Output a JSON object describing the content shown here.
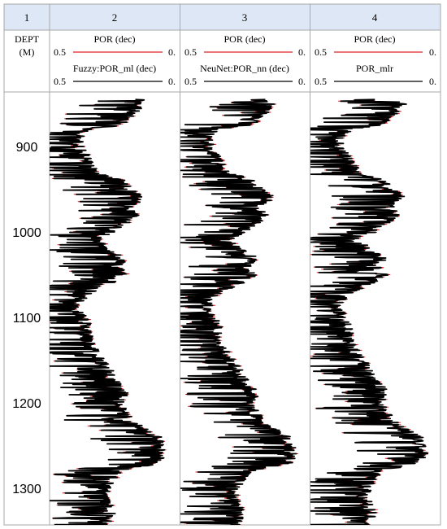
{
  "chart_data": {
    "type": "line",
    "track_numbers": [
      "1",
      "2",
      "3",
      "4"
    ],
    "depth_track": {
      "label": "DEPT",
      "unit": "(M)"
    },
    "depth_axis": {
      "range": [
        845,
        1345
      ],
      "ticks": [
        "900",
        "1000",
        "1100",
        "1200",
        "1300"
      ]
    },
    "tracks": [
      {
        "curves": [
          {
            "name": "POR (dec)",
            "left": "0.5",
            "right": "0.",
            "color": "#e02020"
          },
          {
            "name": "Fuzzy:POR_ml (dec)",
            "left": "0.5",
            "right": "0.",
            "color": "#000000"
          }
        ],
        "range": [
          0.5,
          0.0
        ]
      },
      {
        "curves": [
          {
            "name": "POR (dec)",
            "left": "0.5",
            "right": "0.",
            "color": "#e02020"
          },
          {
            "name": "NeuNet:POR_nn (dec)",
            "left": "0.5",
            "right": "0.",
            "color": "#000000"
          }
        ],
        "range": [
          0.5,
          0.0
        ]
      },
      {
        "curves": [
          {
            "name": "POR (dec)",
            "left": "0.5",
            "right": "0.",
            "color": "#e02020"
          },
          {
            "name": "POR_mlr",
            "left": "0.5",
            "right": "0.",
            "color": "#000000"
          }
        ],
        "range": [
          0.5,
          0.0
        ]
      }
    ],
    "porosity_profile": {
      "depths": [
        848,
        860,
        875,
        880,
        890,
        900,
        910,
        920,
        930,
        940,
        950,
        960,
        970,
        980,
        990,
        1000,
        1010,
        1020,
        1030,
        1040,
        1050,
        1060,
        1070,
        1080,
        1090,
        1100,
        1110,
        1120,
        1130,
        1140,
        1150,
        1160,
        1170,
        1180,
        1190,
        1200,
        1210,
        1220,
        1230,
        1240,
        1250,
        1260,
        1270,
        1280,
        1290,
        1300,
        1310,
        1320,
        1330,
        1340
      ],
      "por": [
        0.15,
        0.18,
        0.24,
        0.36,
        0.4,
        0.39,
        0.37,
        0.35,
        0.33,
        0.23,
        0.2,
        0.15,
        0.2,
        0.18,
        0.22,
        0.27,
        0.33,
        0.28,
        0.22,
        0.25,
        0.22,
        0.28,
        0.35,
        0.39,
        0.4,
        0.38,
        0.36,
        0.36,
        0.35,
        0.33,
        0.31,
        0.28,
        0.27,
        0.24,
        0.22,
        0.24,
        0.22,
        0.2,
        0.15,
        0.09,
        0.08,
        0.07,
        0.09,
        0.24,
        0.27,
        0.29,
        0.3,
        0.28,
        0.27,
        0.29
      ]
    }
  }
}
